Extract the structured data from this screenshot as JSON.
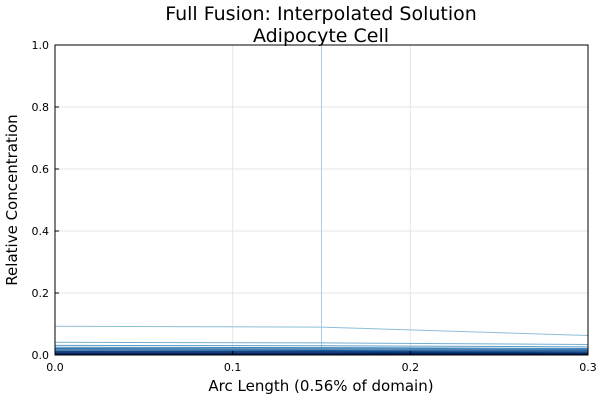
{
  "chart_data": {
    "type": "line",
    "title": "Full Fusion: Interpolated Solution",
    "subtitle": "Adipocyte Cell",
    "xlabel": "Arc Length (0.56% of domain)",
    "ylabel": "Relative Concentration",
    "xlim": [
      0.0,
      0.3
    ],
    "ylim": [
      0.0,
      1.0
    ],
    "xticks": [
      "0.0",
      "0.1",
      "0.2",
      "0.3"
    ],
    "yticks": [
      "0.0",
      "0.2",
      "0.4",
      "0.6",
      "0.8",
      "1.0"
    ],
    "grid": true,
    "legend": "none",
    "colors": [
      "#a6cfe3",
      "#8dbfd9",
      "#74aed0",
      "#5a9cc6",
      "#4288bb",
      "#2f74ad",
      "#20609e",
      "#154f8f",
      "#0c3f80",
      "#083070",
      "#042262",
      "#021b55"
    ],
    "series": [
      {
        "x": [
          0.15,
          0.15
        ],
        "values": [
          1.0,
          0.0
        ]
      },
      {
        "x": [
          0.0,
          0.15,
          0.3
        ],
        "values": [
          0.093,
          0.09,
          0.063
        ]
      },
      {
        "x": [
          0.0,
          0.15,
          0.3
        ],
        "values": [
          0.041,
          0.039,
          0.034
        ]
      },
      {
        "x": [
          0.0,
          0.15,
          0.3
        ],
        "values": [
          0.031,
          0.03,
          0.026
        ]
      },
      {
        "x": [
          0.0,
          0.15,
          0.3
        ],
        "values": [
          0.025,
          0.024,
          0.021
        ]
      },
      {
        "x": [
          0.0,
          0.15,
          0.3
        ],
        "values": [
          0.021,
          0.02,
          0.018
        ]
      },
      {
        "x": [
          0.0,
          0.15,
          0.3
        ],
        "values": [
          0.017,
          0.016,
          0.015
        ]
      },
      {
        "x": [
          0.0,
          0.15,
          0.3
        ],
        "values": [
          0.013,
          0.013,
          0.012
        ]
      },
      {
        "x": [
          0.0,
          0.15,
          0.3
        ],
        "values": [
          0.01,
          0.01,
          0.009
        ]
      },
      {
        "x": [
          0.0,
          0.15,
          0.3
        ],
        "values": [
          0.007,
          0.007,
          0.006
        ]
      },
      {
        "x": [
          0.0,
          0.15,
          0.3
        ],
        "values": [
          0.005,
          0.005,
          0.004
        ]
      },
      {
        "x": [
          0.0,
          0.15,
          0.3
        ],
        "values": [
          0.003,
          0.003,
          0.003
        ]
      },
      {
        "x": [
          0.0,
          0.15,
          0.3
        ],
        "values": [
          0.001,
          0.001,
          0.001
        ]
      }
    ]
  }
}
